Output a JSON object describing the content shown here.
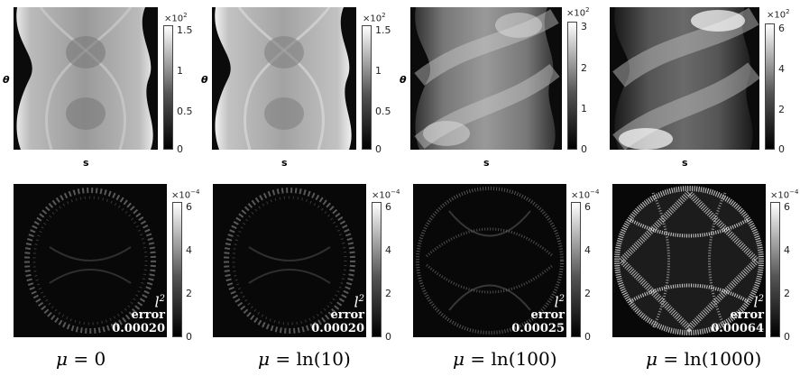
{
  "panels": [
    {
      "mu_text": "0",
      "sino_max": "1.5",
      "sino_ticks": [
        "1.5",
        "1",
        "0.5",
        "0"
      ],
      "sino_scale_base": "×10",
      "sino_scale_exp": "2",
      "err_ticks": [
        "6",
        "4",
        "2",
        "0"
      ],
      "err_scale_base": "×10",
      "err_scale_exp": "−4",
      "error_value": "0.00020"
    },
    {
      "mu_text": "ln(10)",
      "sino_max": "1.5",
      "sino_ticks": [
        "1.5",
        "1",
        "0.5",
        "0"
      ],
      "sino_scale_base": "×10",
      "sino_scale_exp": "2",
      "err_ticks": [
        "6",
        "4",
        "2",
        "0"
      ],
      "err_scale_base": "×10",
      "err_scale_exp": "−4",
      "error_value": "0.00020"
    },
    {
      "mu_text": "ln(100)",
      "sino_max": "3",
      "sino_ticks": [
        "3",
        "2",
        "1",
        "0"
      ],
      "sino_scale_base": "×10",
      "sino_scale_exp": "2",
      "err_ticks": [
        "6",
        "4",
        "2",
        "0"
      ],
      "err_scale_base": "×10",
      "err_scale_exp": "−4",
      "error_value": "0.00025"
    },
    {
      "mu_text": "ln(1000)",
      "sino_max": "6",
      "sino_ticks": [
        "6",
        "4",
        "2",
        "0"
      ],
      "sino_scale_base": "×10",
      "sino_scale_exp": "2",
      "err_ticks": [
        "6",
        "4",
        "2",
        "0"
      ],
      "err_scale_base": "×10",
      "err_scale_exp": "−4",
      "error_value": "0.00064"
    }
  ],
  "labels": {
    "x_axis": "s",
    "y_axis": "θ",
    "mu_symbol": "μ",
    "equals": " = ",
    "error_l": "l",
    "error_sup": "2",
    "error_word": "error"
  },
  "colors": {
    "cmap_low": "#000000",
    "cmap_high": "#ffffff"
  }
}
